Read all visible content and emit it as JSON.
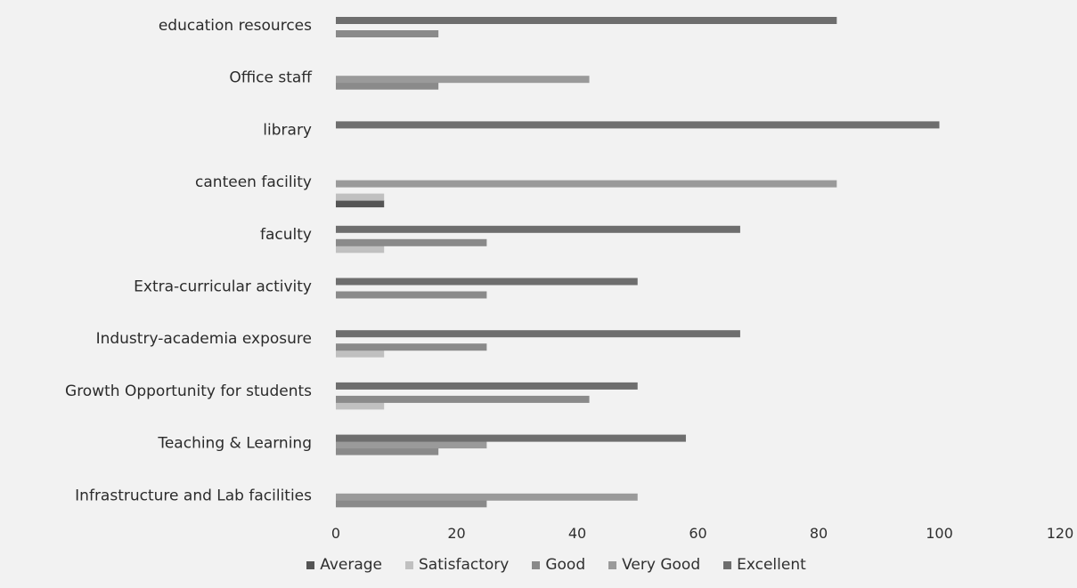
{
  "chart_data": {
    "type": "bar",
    "orientation": "horizontal",
    "categories": [
      "education resources",
      "Office staff",
      "library",
      "canteen facility",
      "faculty",
      "Extra-curricular activity",
      "Industry-academia exposure",
      "Growth Opportunity for students",
      "Teaching & Learning",
      "Infrastructure and Lab facilities"
    ],
    "series": [
      {
        "name": "Average",
        "color": "#555555",
        "values": [
          0,
          0,
          0,
          8,
          0,
          0,
          0,
          0,
          0,
          0
        ]
      },
      {
        "name": "Satisfactory",
        "color": "#c0c0c0",
        "values": [
          0,
          0,
          0,
          8,
          8,
          0,
          8,
          8,
          0,
          0
        ]
      },
      {
        "name": "Good",
        "color": "#8a8a8a",
        "values": [
          17,
          17,
          0,
          0,
          25,
          25,
          25,
          42,
          17,
          25
        ]
      },
      {
        "name": "Very Good",
        "color": "#9a9a9a",
        "values": [
          0,
          42,
          0,
          83,
          0,
          0,
          0,
          0,
          25,
          50
        ]
      },
      {
        "name": "Excellent",
        "color": "#6e6e6e",
        "values": [
          83,
          0,
          100,
          0,
          67,
          50,
          67,
          50,
          58,
          0
        ]
      }
    ],
    "xlim": [
      0,
      120
    ],
    "xticks": [
      "0",
      "20",
      "40",
      "60",
      "80",
      "100",
      "120"
    ],
    "legend_position": "bottom"
  }
}
